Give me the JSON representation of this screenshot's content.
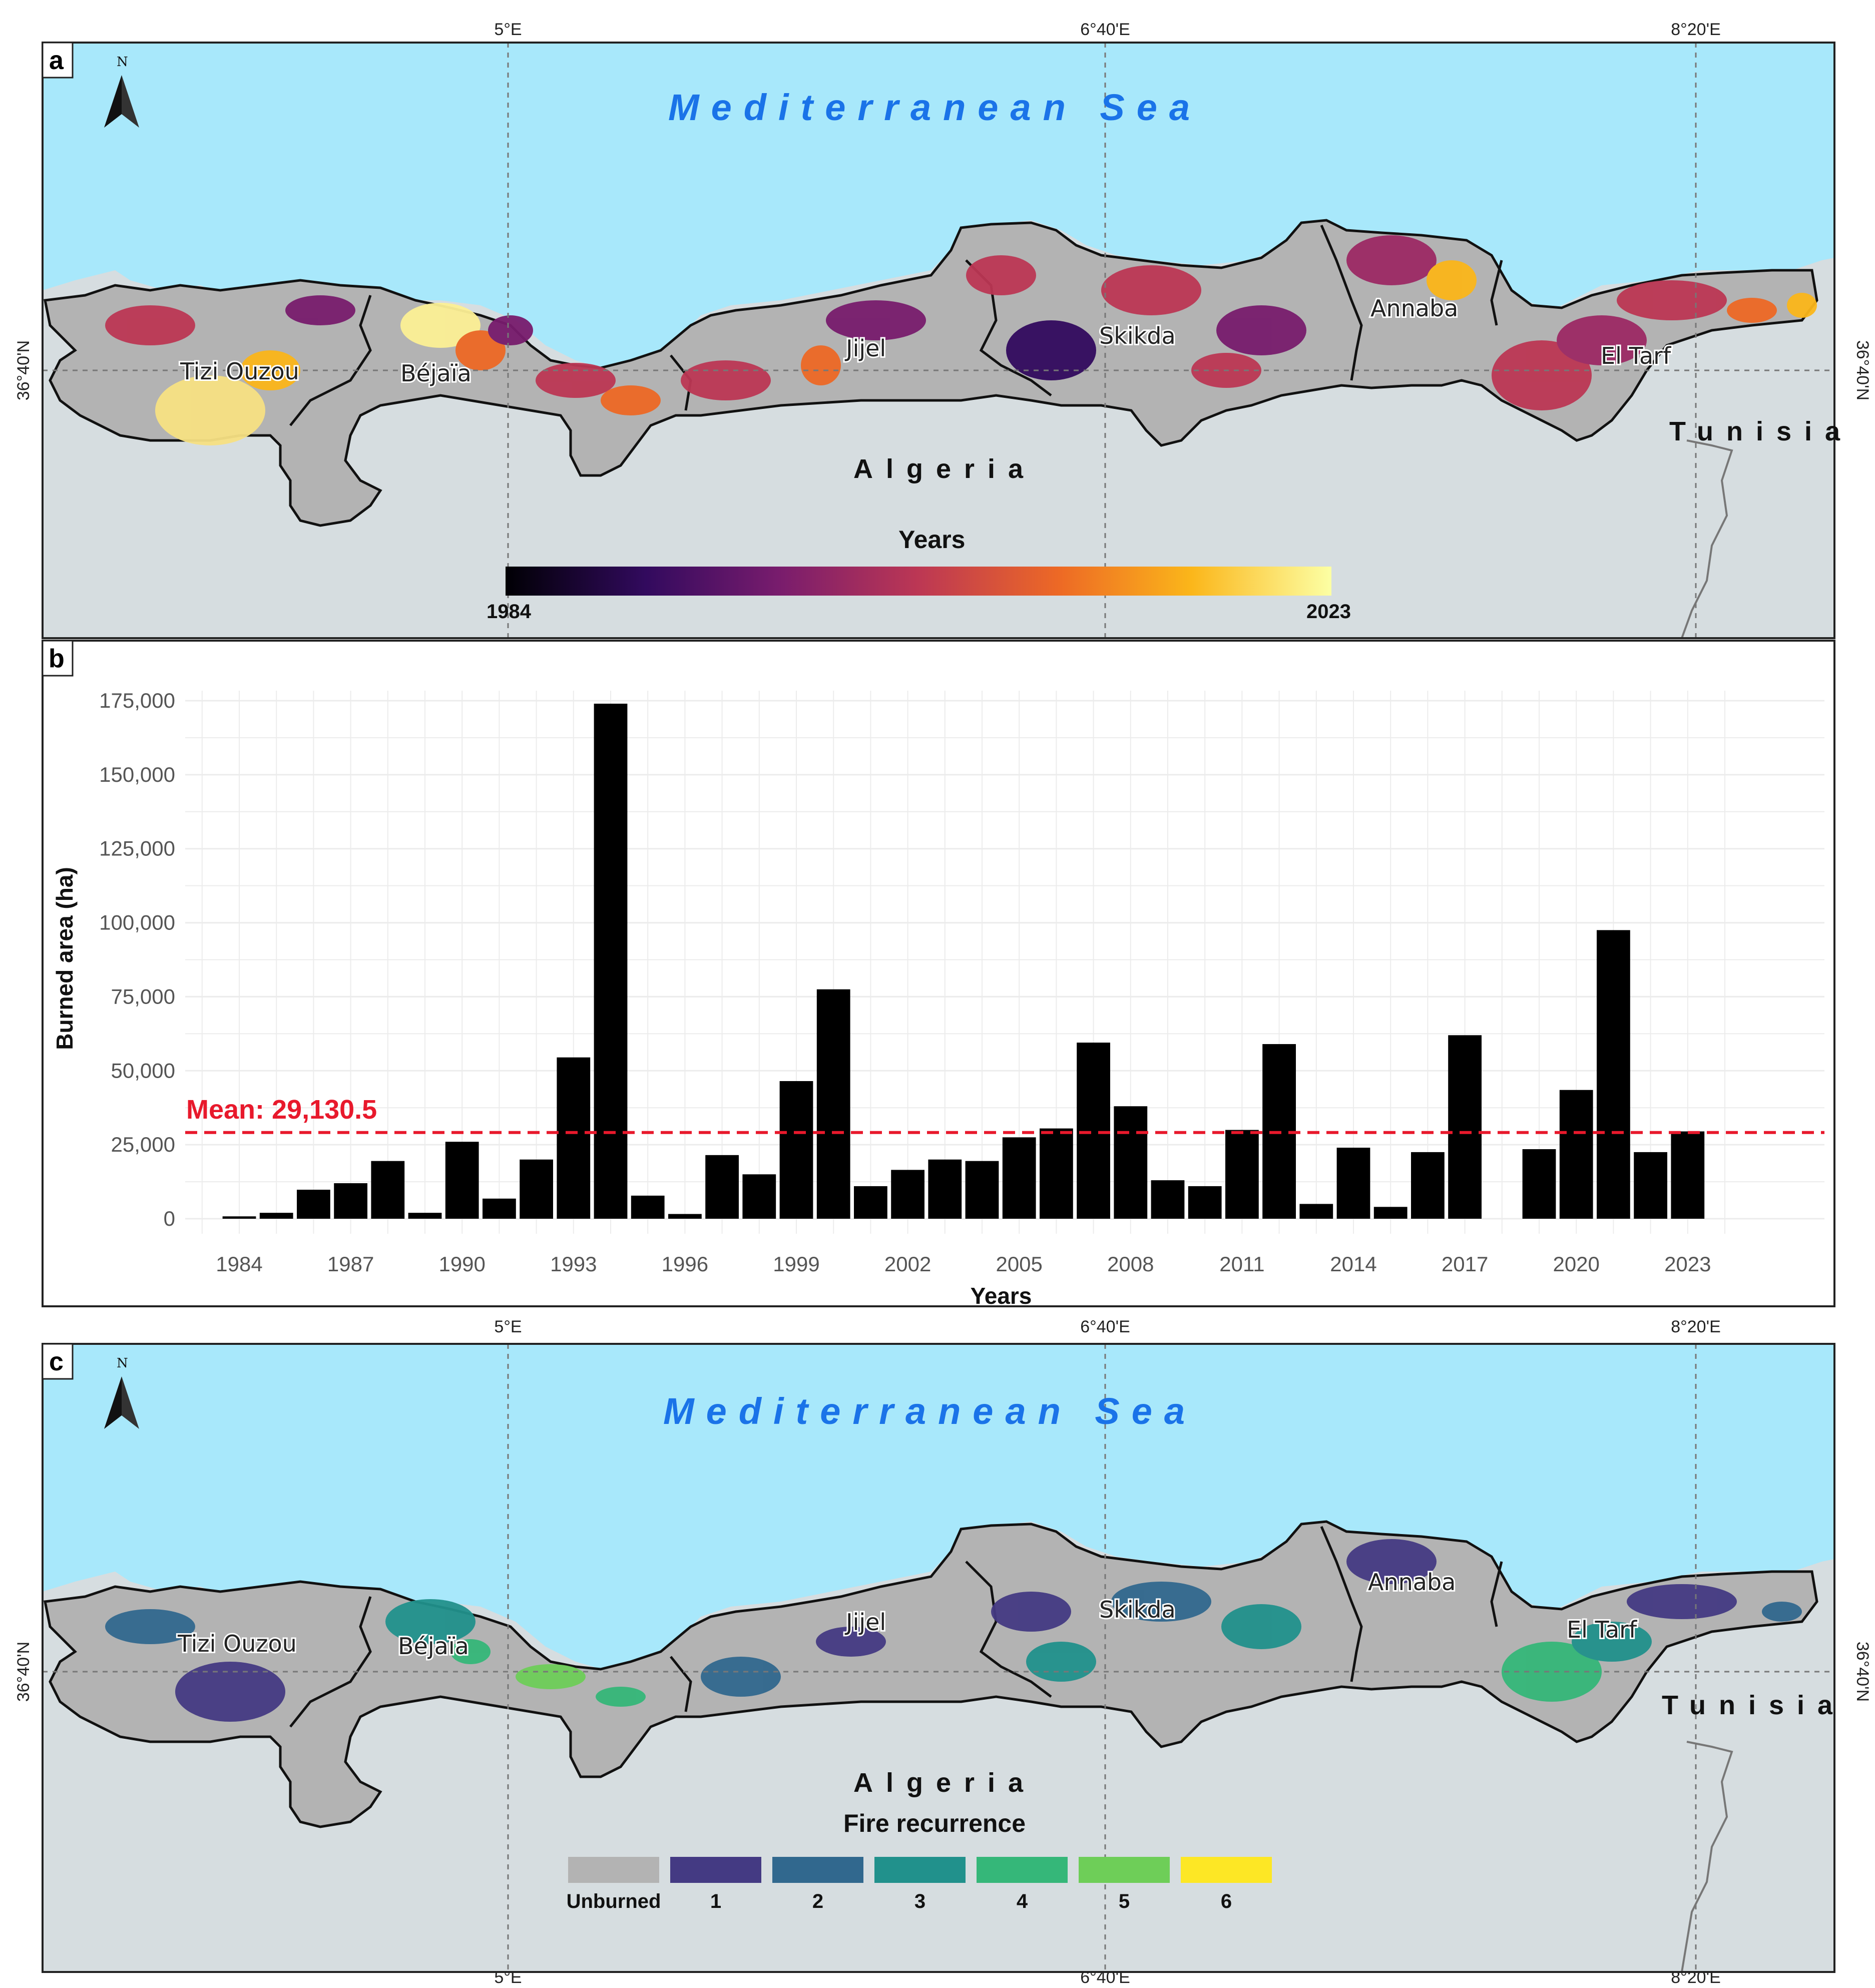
{
  "panels": {
    "a": {
      "letter": "a",
      "sea_label": "Mediterranean Sea",
      "country_label": "Algeria",
      "neighbor_label": "Tunisia",
      "north_label": "N",
      "regions": [
        "Tizi Ouzou",
        "Béjaïa",
        "Jijel",
        "Skikda",
        "Annaba",
        "El Tarf"
      ],
      "legend": {
        "title": "Years",
        "min_label": "1984",
        "max_label": "2023",
        "gradient": [
          "#000004",
          "#320a5e",
          "#781c6d",
          "#bc3754",
          "#ed6925",
          "#fbb61a",
          "#fcffa4"
        ]
      }
    },
    "b": {
      "letter": "b"
    },
    "c": {
      "letter": "c",
      "sea_label": "Mediterranean Sea",
      "country_label": "Algeria",
      "neighbor_label": "Tunisia",
      "north_label": "N",
      "regions": [
        "Tizi Ouzou",
        "Béjaïa",
        "Jijel",
        "Skikda",
        "Annaba",
        "El Tarf"
      ],
      "legend": {
        "title": "Fire recurrence",
        "classes": [
          {
            "label": "Unburned",
            "color": "#b3b3b3"
          },
          {
            "label": "1",
            "color": "#443a83"
          },
          {
            "label": "2",
            "color": "#31688e"
          },
          {
            "label": "3",
            "color": "#21918c"
          },
          {
            "label": "4",
            "color": "#35b779"
          },
          {
            "label": "5",
            "color": "#6ece58"
          },
          {
            "label": "6",
            "color": "#fde725"
          }
        ]
      }
    }
  },
  "map_coords": {
    "lon_labels": [
      "5°E",
      "6°40'E",
      "8°20'E"
    ],
    "lat_label": "36°40'N"
  },
  "colors": {
    "sea": "#a8e8fb",
    "land_other": "#d6dde0",
    "study_area": "#b3b3b3",
    "mean_line": "#e8192c",
    "bar": "#000000"
  },
  "chart_data": {
    "type": "bar",
    "title": "",
    "xlabel": "Years",
    "ylabel": "Burned area (ha)",
    "ylim": [
      0,
      175000
    ],
    "yticks": [
      0,
      25000,
      50000,
      75000,
      100000,
      125000,
      150000,
      175000
    ],
    "ytick_labels": [
      "0",
      "25,000",
      "50,000",
      "75,000",
      "100,000",
      "125,000",
      "150,000",
      "175,000"
    ],
    "xtick_labels": [
      "1984",
      "1987",
      "1990",
      "1993",
      "1996",
      "1999",
      "2002",
      "2005",
      "2008",
      "2011",
      "2014",
      "2017",
      "2020",
      "2023"
    ],
    "categories": [
      1984,
      1985,
      1986,
      1987,
      1988,
      1989,
      1990,
      1991,
      1992,
      1993,
      1994,
      1995,
      1996,
      1997,
      1998,
      1999,
      2000,
      2001,
      2002,
      2003,
      2004,
      2005,
      2006,
      2007,
      2008,
      2009,
      2010,
      2011,
      2012,
      2013,
      2014,
      2015,
      2016,
      2017,
      2018,
      2019,
      2020,
      2021,
      2022,
      2023
    ],
    "values": [
      800,
      2000,
      9800,
      12000,
      19500,
      2000,
      26000,
      6800,
      20000,
      54500,
      174000,
      7800,
      1600,
      21500,
      15000,
      46500,
      77500,
      11000,
      16500,
      20000,
      19500,
      27500,
      30500,
      59500,
      38000,
      13000,
      11000,
      30000,
      59000,
      5000,
      24000,
      4000,
      22500,
      62000,
      0,
      23500,
      43500,
      97500,
      22500,
      29500
    ],
    "mean": 29130.5,
    "mean_label": "Mean: 29,130.5",
    "grid": true,
    "legend": "none"
  }
}
